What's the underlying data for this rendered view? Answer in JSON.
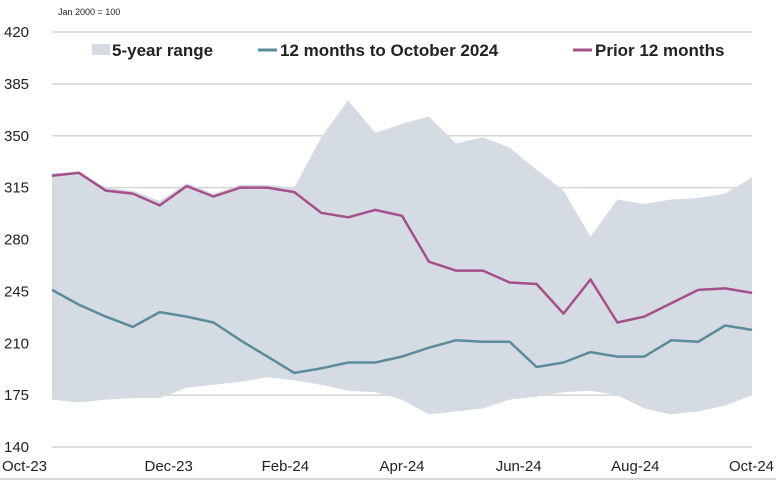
{
  "chart_data": {
    "type": "area",
    "note": "Jan 2000 = 100",
    "xlabel": "",
    "ylabel": "",
    "ylim": [
      140,
      420
    ],
    "yticks": [
      140,
      175,
      210,
      245,
      280,
      315,
      350,
      385,
      420
    ],
    "x_unit": "months since Oct-23",
    "xlim": [
      0,
      12
    ],
    "xticks": [
      {
        "x": 0,
        "label": "Oct-23"
      },
      {
        "x": 2,
        "label": "Dec-23"
      },
      {
        "x": 4,
        "label": "Feb-24"
      },
      {
        "x": 6,
        "label": "Apr-24"
      },
      {
        "x": 8,
        "label": "Jun-24"
      },
      {
        "x": 10,
        "label": "Aug-24"
      },
      {
        "x": 12,
        "label": "Oct-24"
      }
    ],
    "grid": true,
    "legend_position": "top",
    "band": {
      "name": "5-year range",
      "color": "#d5dbe3",
      "upper": [
        325,
        325,
        315,
        313,
        306,
        318,
        311,
        317,
        317,
        315,
        349,
        374,
        352,
        358,
        363,
        345,
        349,
        342,
        327,
        313,
        282,
        307,
        304,
        307,
        308,
        311,
        322
      ],
      "lower": [
        172,
        170,
        172,
        173,
        173,
        180,
        182,
        184,
        187,
        185,
        182,
        178,
        177,
        172,
        162,
        164,
        166,
        172,
        174,
        177,
        178,
        175,
        166,
        162,
        164,
        168,
        175
      ]
    },
    "series": [
      {
        "name": "12 months to October 2024",
        "color": "#5b8c9c",
        "values": [
          246,
          236,
          228,
          221,
          231,
          228,
          224,
          212,
          201,
          190,
          193,
          197,
          197,
          201,
          207,
          212,
          211,
          211,
          194,
          197,
          204,
          201,
          201,
          212,
          211,
          222,
          219
        ]
      },
      {
        "name": "Prior 12 months",
        "color": "#a54f8c",
        "values": [
          323,
          325,
          313,
          311,
          303,
          316,
          309,
          315,
          315,
          312,
          298,
          295,
          300,
          296,
          265,
          259,
          259,
          251,
          250,
          230,
          253,
          224,
          228,
          237,
          246,
          247,
          244
        ]
      }
    ]
  }
}
